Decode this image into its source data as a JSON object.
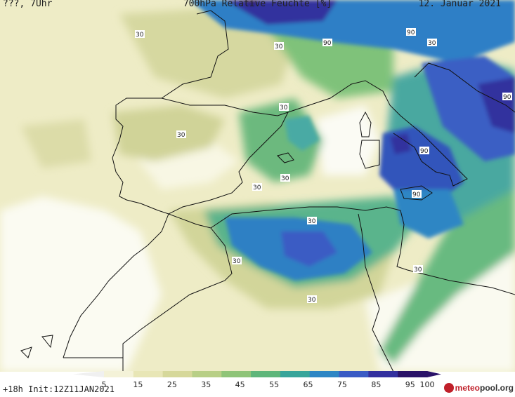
{
  "header": {
    "left": "???, 7Uhr",
    "title": "700hPa Relative Feuchte [%]",
    "date": "12. Januar 2021"
  },
  "contour_labels": [
    {
      "id": "l1",
      "text": "30"
    },
    {
      "id": "l2",
      "text": "30"
    },
    {
      "id": "l3",
      "text": "90"
    },
    {
      "id": "l4",
      "text": "90"
    },
    {
      "id": "l5",
      "text": "30"
    },
    {
      "id": "l6",
      "text": "90"
    },
    {
      "id": "l7",
      "text": "30"
    },
    {
      "id": "l8",
      "text": "30"
    },
    {
      "id": "l9",
      "text": "90"
    },
    {
      "id": "l10",
      "text": "30"
    },
    {
      "id": "l11",
      "text": "30"
    },
    {
      "id": "l12",
      "text": "90"
    },
    {
      "id": "l13",
      "text": "30"
    },
    {
      "id": "l14",
      "text": "30"
    },
    {
      "id": "l15",
      "text": "30"
    },
    {
      "id": "l16",
      "text": "30"
    }
  ],
  "colorbar": {
    "ticks": [
      "5",
      "15",
      "25",
      "35",
      "45",
      "55",
      "65",
      "75",
      "85",
      "95",
      "100"
    ],
    "colors": [
      "#ffffff",
      "#f4f2d8",
      "#e8e6b6",
      "#d6d89a",
      "#b8cf86",
      "#8fc478",
      "#5fb67a",
      "#38a59a",
      "#2e86c4",
      "#3a5bc4",
      "#33309e",
      "#2a1268"
    ]
  },
  "footer": {
    "run": "+18h Init:12Z11JAN2021",
    "brand_a": "meteo",
    "brand_b": "pool",
    "brand_c": ".org"
  }
}
